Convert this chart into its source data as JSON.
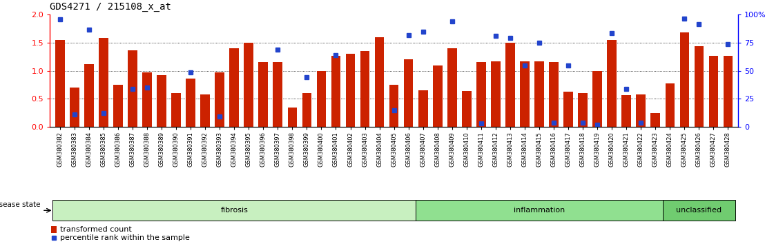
{
  "title": "GDS4271 / 215108_x_at",
  "samples": [
    "GSM380382",
    "GSM380383",
    "GSM380384",
    "GSM380385",
    "GSM380386",
    "GSM380387",
    "GSM380388",
    "GSM380389",
    "GSM380390",
    "GSM380391",
    "GSM380392",
    "GSM380393",
    "GSM380394",
    "GSM380395",
    "GSM380396",
    "GSM380397",
    "GSM380398",
    "GSM380399",
    "GSM380400",
    "GSM380401",
    "GSM380402",
    "GSM380403",
    "GSM380404",
    "GSM380405",
    "GSM380406",
    "GSM380407",
    "GSM380408",
    "GSM380409",
    "GSM380410",
    "GSM380411",
    "GSM380412",
    "GSM380413",
    "GSM380414",
    "GSM380415",
    "GSM380416",
    "GSM380417",
    "GSM380418",
    "GSM380419",
    "GSM380420",
    "GSM380421",
    "GSM380422",
    "GSM380423",
    "GSM380424",
    "GSM380425",
    "GSM380426",
    "GSM380427",
    "GSM380428"
  ],
  "bar_values": [
    1.55,
    0.7,
    1.12,
    1.58,
    0.75,
    1.37,
    0.97,
    0.92,
    0.6,
    0.86,
    0.58,
    0.97,
    1.4,
    1.5,
    1.15,
    1.15,
    0.35,
    0.6,
    1.0,
    1.27,
    1.3,
    1.35,
    1.6,
    0.75,
    1.2,
    0.65,
    1.1,
    1.4,
    0.64,
    1.15,
    1.17,
    1.5,
    1.17,
    1.17,
    1.15,
    0.63,
    0.6,
    1.0,
    1.55,
    0.57,
    0.58,
    0.25,
    0.77,
    1.68,
    1.44,
    1.27,
    1.27
  ],
  "dot_values": [
    1.92,
    0.22,
    1.73,
    0.25,
    null,
    0.68,
    0.7,
    null,
    null,
    0.97,
    null,
    0.18,
    null,
    null,
    null,
    1.38,
    null,
    0.88,
    null,
    1.28,
    null,
    null,
    null,
    0.3,
    1.63,
    1.7,
    null,
    1.88,
    null,
    0.06,
    1.62,
    1.58,
    1.1,
    1.5,
    0.08,
    1.1,
    0.08,
    0.04,
    1.67,
    0.68,
    0.08,
    null,
    null,
    1.93,
    1.83,
    null,
    1.48
  ],
  "groups": [
    {
      "label": "fibrosis",
      "start": 0,
      "end": 25,
      "color": "#c8f0c0"
    },
    {
      "label": "inflammation",
      "start": 25,
      "end": 42,
      "color": "#90e090"
    },
    {
      "label": "unclassified",
      "start": 42,
      "end": 47,
      "color": "#70cc70"
    }
  ],
  "bar_color": "#cc2200",
  "dot_color": "#2244cc",
  "ylim_left": [
    0,
    2.0
  ],
  "ylim_right": [
    0,
    100
  ],
  "yticks_left": [
    0,
    0.5,
    1.0,
    1.5,
    2.0
  ],
  "yticks_right": [
    0,
    25,
    50,
    75,
    100
  ],
  "hlines": [
    0.5,
    1.0,
    1.5
  ],
  "disease_state_label": "disease state",
  "legend_bar": "transformed count",
  "legend_dot": "percentile rank within the sample",
  "bg_color": "#f0f0f0"
}
